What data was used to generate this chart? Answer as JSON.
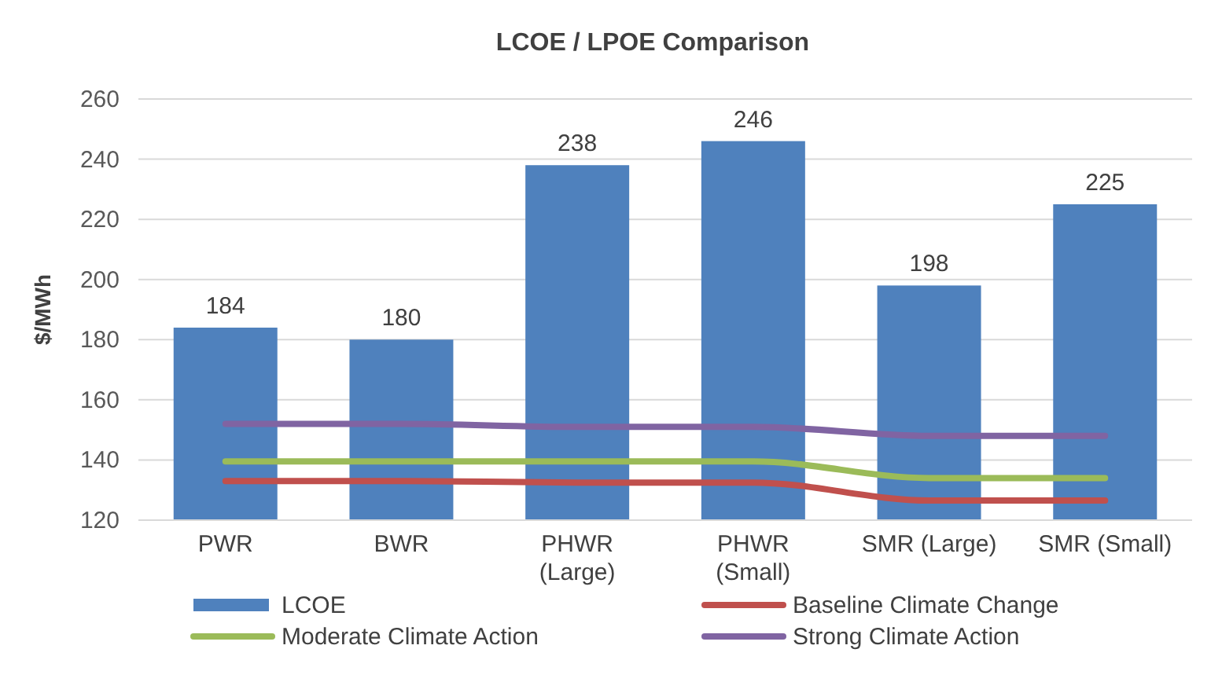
{
  "chart_data": {
    "type": "bar",
    "title": "LCOE / LPOE Comparison",
    "ylabel": "$/MWh",
    "categories": [
      "PWR",
      "BWR",
      "PHWR\n(Large)",
      "PHWR\n(Small)",
      "SMR (Large)",
      "SMR (Small)"
    ],
    "ylim": [
      120,
      260
    ],
    "yticks": [
      120,
      140,
      160,
      180,
      200,
      220,
      240,
      260
    ],
    "grid": "y",
    "legend": "bottom",
    "series": [
      {
        "name": "LCOE",
        "color": "#4f81bd",
        "values": [
          184,
          180,
          238,
          246,
          198,
          225
        ],
        "value_labels": [
          "184",
          "180",
          "238",
          "246",
          "198",
          "225"
        ]
      },
      {
        "name": "Baseline Climate Change",
        "type": "line",
        "color": "#c0504d",
        "values": [
          133,
          133,
          132.5,
          132.5,
          126.5,
          126.5
        ]
      },
      {
        "name": "Moderate Climate Action",
        "type": "line",
        "color": "#9bbb59",
        "values": [
          139.5,
          139.5,
          139.5,
          139.5,
          134,
          134
        ]
      },
      {
        "name": "Strong Climate Action",
        "type": "line",
        "color": "#8064a2",
        "values": [
          152,
          152,
          151,
          151,
          148,
          148
        ]
      }
    ]
  }
}
